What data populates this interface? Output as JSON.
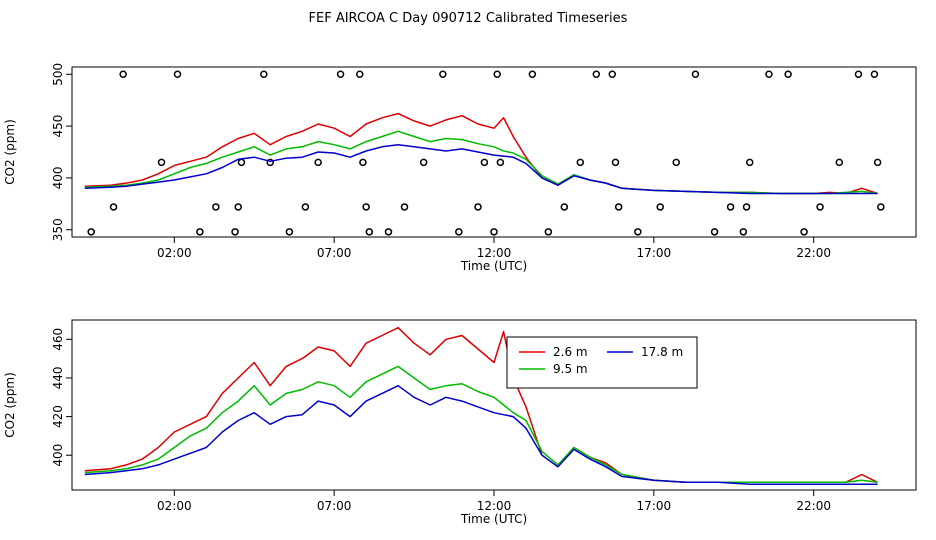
{
  "title": "FEF AIRCOA C  Day 090712  Calibrated Timeseries",
  "series_colors": {
    "2.6 m": "#dd0000",
    "9.5 m": "#00bb00",
    "17.8 m": "#0000cc"
  },
  "chart_data": [
    {
      "type": "line+scatter",
      "xlabel": "Time (UTC)",
      "ylabel": "CO2 (ppm)",
      "xlim_hours": [
        -1.2,
        25.2
      ],
      "ylim": [
        343,
        507
      ],
      "x_ticks": [
        {
          "h": 2,
          "label": "02:00"
        },
        {
          "h": 7,
          "label": "07:00"
        },
        {
          "h": 12,
          "label": "12:00"
        },
        {
          "h": 17,
          "label": "17:00"
        },
        {
          "h": 22,
          "label": "22:00"
        }
      ],
      "y_ticks": [
        350,
        400,
        450,
        500
      ],
      "series": [
        {
          "name": "2.6 m",
          "color": "#dd0000",
          "x_hours": [
            -0.8,
            0.0,
            0.5,
            1.0,
            1.5,
            2.0,
            2.5,
            3.0,
            3.5,
            4.0,
            4.5,
            5.0,
            5.5,
            6.0,
            6.5,
            7.0,
            7.5,
            8.0,
            8.5,
            9.0,
            9.5,
            10.0,
            10.5,
            11.0,
            11.5,
            12.0,
            12.3,
            12.6,
            13.0,
            13.5,
            14.0,
            14.5,
            15.0,
            15.5,
            16.0,
            17.0,
            18.0,
            19.0,
            20.0,
            21.0,
            22.0,
            22.5,
            23.0,
            23.5,
            24.0
          ],
          "values": [
            392,
            393,
            395,
            398,
            404,
            412,
            416,
            420,
            430,
            438,
            443,
            432,
            440,
            445,
            452,
            448,
            440,
            452,
            458,
            462,
            455,
            450,
            456,
            460,
            452,
            448,
            458,
            440,
            420,
            400,
            393,
            403,
            398,
            395,
            390,
            388,
            387,
            386,
            386,
            385,
            385,
            386,
            385,
            390,
            385
          ]
        },
        {
          "name": "9.5 m",
          "color": "#00bb00",
          "x_hours": [
            -0.8,
            0.0,
            0.5,
            1.0,
            1.5,
            2.0,
            2.5,
            3.0,
            3.5,
            4.0,
            4.5,
            5.0,
            5.5,
            6.0,
            6.5,
            7.0,
            7.5,
            8.0,
            8.5,
            9.0,
            9.5,
            10.0,
            10.5,
            11.0,
            11.5,
            12.0,
            12.3,
            12.6,
            13.0,
            13.5,
            14.0,
            14.5,
            15.0,
            15.5,
            16.0,
            17.0,
            18.0,
            19.0,
            20.0,
            21.0,
            22.0,
            22.5,
            23.0,
            23.5,
            24.0
          ],
          "values": [
            391,
            392,
            393,
            395,
            398,
            404,
            410,
            414,
            420,
            425,
            430,
            422,
            428,
            430,
            435,
            432,
            428,
            435,
            440,
            445,
            440,
            435,
            438,
            437,
            433,
            430,
            426,
            424,
            418,
            402,
            394,
            403,
            398,
            395,
            390,
            388,
            387,
            386,
            386,
            385,
            385,
            385,
            386,
            387,
            385
          ]
        },
        {
          "name": "17.8 m",
          "color": "#0000cc",
          "x_hours": [
            -0.8,
            0.0,
            0.5,
            1.0,
            1.5,
            2.0,
            2.5,
            3.0,
            3.5,
            4.0,
            4.5,
            5.0,
            5.5,
            6.0,
            6.5,
            7.0,
            7.5,
            8.0,
            8.5,
            9.0,
            9.5,
            10.0,
            10.5,
            11.0,
            11.5,
            12.0,
            12.3,
            12.6,
            13.0,
            13.5,
            14.0,
            14.5,
            15.0,
            15.5,
            16.0,
            17.0,
            18.0,
            19.0,
            20.0,
            21.0,
            22.0,
            22.5,
            23.0,
            23.5,
            24.0
          ],
          "values": [
            390,
            391,
            392,
            394,
            396,
            398,
            401,
            404,
            410,
            418,
            420,
            416,
            419,
            420,
            425,
            424,
            420,
            426,
            430,
            432,
            430,
            428,
            426,
            428,
            425,
            422,
            421,
            420,
            414,
            400,
            393,
            402,
            398,
            395,
            390,
            388,
            387,
            386,
            385,
            385,
            385,
            385,
            385,
            385,
            385
          ]
        }
      ],
      "scatter": {
        "x_hours": [
          -0.6,
          0.1,
          0.4,
          1.6,
          2.1,
          2.8,
          3.3,
          3.9,
          4.0,
          4.1,
          4.8,
          5.0,
          5.6,
          6.1,
          6.5,
          7.2,
          7.8,
          7.9,
          8.0,
          8.1,
          8.7,
          9.2,
          9.8,
          10.4,
          10.9,
          11.5,
          11.7,
          12.0,
          12.1,
          12.2,
          13.2,
          13.7,
          14.2,
          14.7,
          15.2,
          15.7,
          15.8,
          15.9,
          16.5,
          17.2,
          17.7,
          18.3,
          18.9,
          19.4,
          19.8,
          19.9,
          20.0,
          20.6,
          21.2,
          21.7,
          22.2,
          22.8,
          23.4,
          23.9,
          24.0,
          24.1
        ],
        "values": [
          348,
          372,
          500,
          415,
          500,
          348,
          372,
          348,
          372,
          415,
          500,
          415,
          348,
          372,
          415,
          500,
          500,
          415,
          372,
          348,
          348,
          372,
          415,
          500,
          348,
          372,
          415,
          348,
          500,
          415,
          500,
          348,
          372,
          415,
          500,
          500,
          415,
          372,
          348,
          372,
          415,
          500,
          348,
          372,
          348,
          372,
          415,
          500,
          500,
          348,
          372,
          415,
          500,
          500,
          415,
          372
        ]
      }
    },
    {
      "type": "line",
      "xlabel": "Time (UTC)",
      "ylabel": "CO2 (ppm)",
      "xlim_hours": [
        -1.2,
        25.2
      ],
      "ylim": [
        382,
        470
      ],
      "x_ticks": [
        {
          "h": 2,
          "label": "02:00"
        },
        {
          "h": 7,
          "label": "07:00"
        },
        {
          "h": 12,
          "label": "12:00"
        },
        {
          "h": 17,
          "label": "17:00"
        },
        {
          "h": 22,
          "label": "22:00"
        }
      ],
      "y_ticks": [
        400,
        420,
        440,
        460
      ],
      "legend": {
        "position": "top-center",
        "entries": [
          "2.6 m",
          "9.5 m",
          "17.8 m"
        ]
      },
      "series": [
        {
          "name": "2.6 m",
          "color": "#dd0000",
          "x_hours": [
            -0.8,
            0.0,
            0.5,
            1.0,
            1.5,
            2.0,
            2.5,
            3.0,
            3.5,
            4.0,
            4.5,
            5.0,
            5.5,
            6.0,
            6.5,
            7.0,
            7.5,
            8.0,
            8.5,
            9.0,
            9.5,
            10.0,
            10.5,
            11.0,
            11.5,
            12.0,
            12.3,
            12.6,
            13.0,
            13.5,
            14.0,
            14.5,
            15.0,
            15.5,
            16.0,
            17.0,
            18.0,
            19.0,
            20.0,
            21.0,
            22.0,
            22.5,
            23.0,
            23.5,
            24.0
          ],
          "values": [
            392,
            393,
            395,
            398,
            404,
            412,
            416,
            420,
            432,
            440,
            448,
            436,
            446,
            450,
            456,
            454,
            446,
            458,
            462,
            466,
            458,
            452,
            460,
            462,
            455,
            448,
            464,
            440,
            425,
            400,
            394,
            404,
            399,
            396,
            390,
            387,
            386,
            386,
            386,
            386,
            386,
            386,
            386,
            390,
            386
          ]
        },
        {
          "name": "9.5 m",
          "color": "#00bb00",
          "x_hours": [
            -0.8,
            0.0,
            0.5,
            1.0,
            1.5,
            2.0,
            2.5,
            3.0,
            3.5,
            4.0,
            4.5,
            5.0,
            5.5,
            6.0,
            6.5,
            7.0,
            7.5,
            8.0,
            8.5,
            9.0,
            9.5,
            10.0,
            10.5,
            11.0,
            11.5,
            12.0,
            12.3,
            12.6,
            13.0,
            13.5,
            14.0,
            14.5,
            15.0,
            15.5,
            16.0,
            17.0,
            18.0,
            19.0,
            20.0,
            21.0,
            22.0,
            22.5,
            23.0,
            23.5,
            24.0
          ],
          "values": [
            391,
            392,
            393,
            395,
            398,
            404,
            410,
            414,
            422,
            428,
            436,
            426,
            432,
            434,
            438,
            436,
            430,
            438,
            442,
            446,
            440,
            434,
            436,
            437,
            433,
            430,
            426,
            422,
            418,
            402,
            395,
            404,
            399,
            395,
            390,
            387,
            386,
            386,
            386,
            386,
            386,
            386,
            386,
            387,
            386
          ]
        },
        {
          "name": "17.8 m",
          "color": "#0000cc",
          "x_hours": [
            -0.8,
            0.0,
            0.5,
            1.0,
            1.5,
            2.0,
            2.5,
            3.0,
            3.5,
            4.0,
            4.5,
            5.0,
            5.5,
            6.0,
            6.5,
            7.0,
            7.5,
            8.0,
            8.5,
            9.0,
            9.5,
            10.0,
            10.5,
            11.0,
            11.5,
            12.0,
            12.3,
            12.6,
            13.0,
            13.5,
            14.0,
            14.5,
            15.0,
            15.5,
            16.0,
            17.0,
            18.0,
            19.0,
            20.0,
            21.0,
            22.0,
            22.5,
            23.0,
            23.5,
            24.0
          ],
          "values": [
            390,
            391,
            392,
            393,
            395,
            398,
            401,
            404,
            412,
            418,
            422,
            416,
            420,
            421,
            428,
            426,
            420,
            428,
            432,
            436,
            430,
            426,
            430,
            428,
            425,
            422,
            421,
            420,
            414,
            400,
            394,
            403,
            398,
            394,
            389,
            387,
            386,
            386,
            385,
            385,
            385,
            385,
            385,
            385,
            385
          ]
        }
      ]
    }
  ]
}
